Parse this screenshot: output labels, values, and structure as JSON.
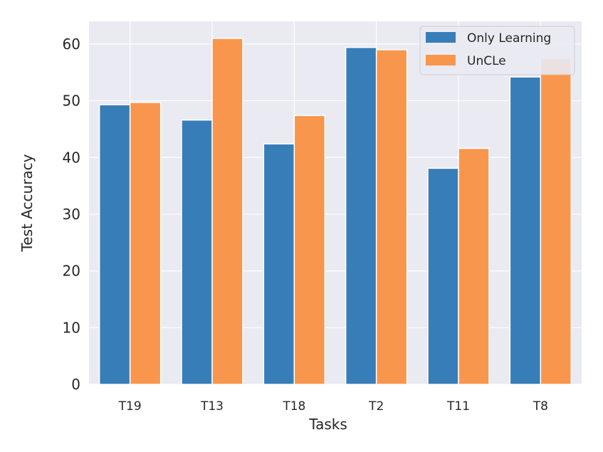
{
  "chart_data": {
    "type": "bar",
    "title": "",
    "xlabel": "Tasks",
    "ylabel": "Test Accuracy",
    "categories": [
      "T19",
      "T13",
      "T18",
      "T2",
      "T11",
      "T8"
    ],
    "series": [
      {
        "name": "Only Learning",
        "color": "#377eb8",
        "values": [
          49.3,
          46.6,
          42.4,
          59.4,
          38.1,
          54.2
        ]
      },
      {
        "name": "UnCLe",
        "color": "#f9964d",
        "values": [
          49.7,
          61.0,
          47.4,
          59.0,
          41.6,
          57.4
        ]
      }
    ],
    "ylim": [
      0,
      64
    ],
    "yticks": [
      0,
      10,
      20,
      30,
      40,
      50,
      60
    ],
    "grid": true,
    "legend_position": "top-right",
    "plot_background": "#eaeaf2",
    "grid_color": "#ffffff"
  }
}
